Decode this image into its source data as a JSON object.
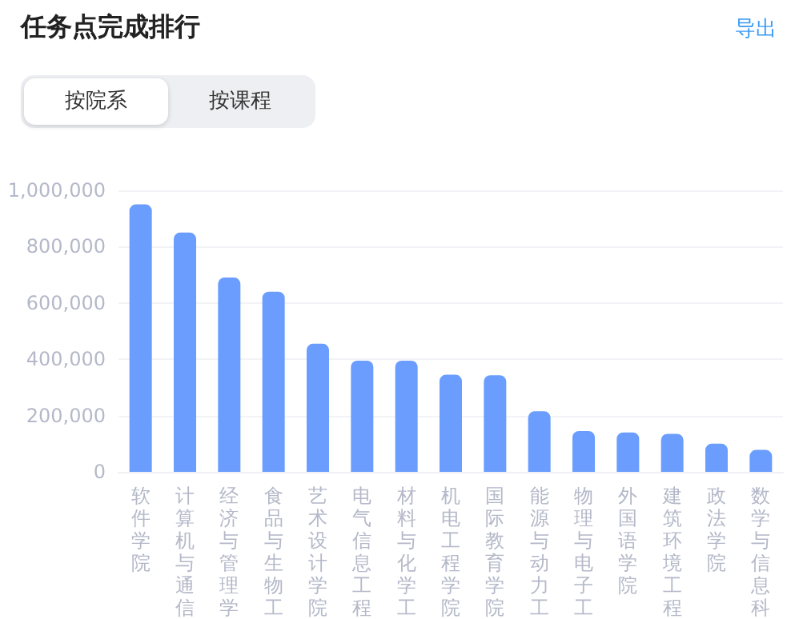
{
  "chart_data": {
    "type": "bar",
    "title": "任务点完成排行",
    "annotations": [
      "导出",
      "按院系",
      "按课程"
    ],
    "categories": [
      "软件学院",
      "计算机与通信",
      "经济与管理学",
      "食品与生物工",
      "艺术设计学院",
      "电气信息工程",
      "材料与化学工",
      "机电工程学院",
      "国际教育学院",
      "能源与动力工",
      "物理与电子工",
      "外国语学院",
      "建筑环境工程",
      "政法学院",
      "数学与信息科"
    ],
    "values": [
      950000,
      850000,
      690000,
      640000,
      455000,
      395000,
      395000,
      345000,
      343000,
      215000,
      145000,
      140000,
      135000,
      100000,
      78000
    ],
    "color": "#6a9dfe",
    "ylim": [
      0,
      1000000
    ],
    "yticks": [
      0,
      {
        "value": 200000,
        "label": "200,000"
      },
      {
        "value": 400000,
        "label": "400,000"
      },
      {
        "value": 600000,
        "label": "600,000"
      },
      {
        "value": 800000,
        "label": "800,000"
      },
      {
        "value": 1000000,
        "label": "1,000,000"
      }
    ],
    "grid": "y"
  }
}
